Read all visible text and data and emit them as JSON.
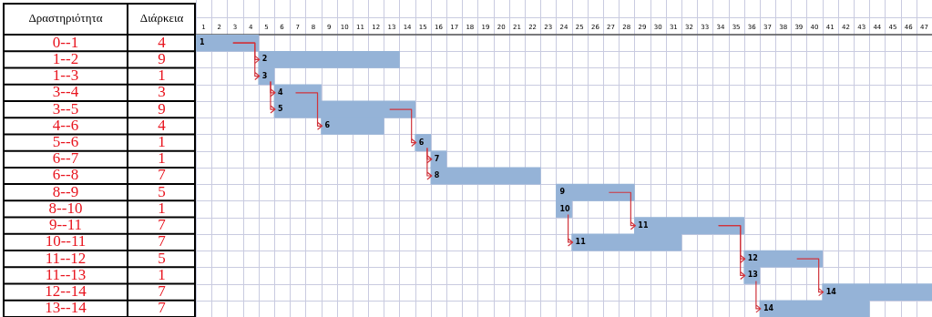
{
  "chart_data": {
    "type": "bar",
    "orientation": "horizontal",
    "ylabel": "Δραστηριότητα",
    "categories": [
      "0--1",
      "1--2",
      "1--3",
      "3--4",
      "3--5",
      "4--6",
      "5--6",
      "6--7",
      "6--8",
      "8--9",
      "8--10",
      "9--11",
      "10--11",
      "11--12",
      "11--13",
      "12--14",
      "13--14"
    ],
    "base": [
      0,
      4,
      4,
      5,
      5,
      8,
      14,
      15,
      15,
      23,
      23,
      28,
      24,
      35,
      35,
      40,
      36
    ],
    "values": [
      4,
      9,
      1,
      3,
      9,
      4,
      1,
      1,
      7,
      5,
      1,
      7,
      7,
      5,
      1,
      7,
      7
    ],
    "value_labels": [
      "4",
      "9",
      "1",
      "3",
      "9",
      "4",
      "1",
      "1",
      "7",
      "5",
      "1",
      "7",
      "7",
      "5",
      "1",
      "7",
      "7"
    ],
    "color": "#95b3d7",
    "xlim": [
      0,
      47
    ],
    "xticks": [
      {
        "value": 0.5,
        "label": "1"
      },
      {
        "value": 1.5,
        "label": "2"
      },
      {
        "value": 2.5,
        "label": "3"
      },
      {
        "value": 3.5,
        "label": "4"
      },
      {
        "value": 4.5,
        "label": "5"
      },
      {
        "value": 5.5,
        "label": "6"
      },
      {
        "value": 6.5,
        "label": "7"
      },
      {
        "value": 7.5,
        "label": "8"
      },
      {
        "value": 8.5,
        "label": "9"
      },
      {
        "value": 9.5,
        "label": "10"
      },
      {
        "value": 10.5,
        "label": "11"
      },
      {
        "value": 11.5,
        "label": "12"
      },
      {
        "value": 12.5,
        "label": "13"
      },
      {
        "value": 13.5,
        "label": "14"
      },
      {
        "value": 14.5,
        "label": "15"
      },
      {
        "value": 15.5,
        "label": "16"
      },
      {
        "value": 16.5,
        "label": "17"
      },
      {
        "value": 17.5,
        "label": "18"
      },
      {
        "value": 18.5,
        "label": "19"
      },
      {
        "value": 19.5,
        "label": "20"
      },
      {
        "value": 20.5,
        "label": "21"
      },
      {
        "value": 21.5,
        "label": "22"
      },
      {
        "value": 22.5,
        "label": "23"
      },
      {
        "value": 23.5,
        "label": "24"
      },
      {
        "value": 24.5,
        "label": "25"
      },
      {
        "value": 25.5,
        "label": "26"
      },
      {
        "value": 26.5,
        "label": "27"
      },
      {
        "value": 27.5,
        "label": "28"
      },
      {
        "value": 28.5,
        "label": "29"
      },
      {
        "value": 29.5,
        "label": "30"
      },
      {
        "value": 30.5,
        "label": "31"
      },
      {
        "value": 31.5,
        "label": "32"
      },
      {
        "value": 32.5,
        "label": "33"
      },
      {
        "value": 33.5,
        "label": "34"
      },
      {
        "value": 34.5,
        "label": "35"
      },
      {
        "value": 35.5,
        "label": "36"
      },
      {
        "value": 36.5,
        "label": "37"
      },
      {
        "value": 37.5,
        "label": "38"
      },
      {
        "value": 38.5,
        "label": "39"
      },
      {
        "value": 39.5,
        "label": "40"
      },
      {
        "value": 40.5,
        "label": "41"
      },
      {
        "value": 41.5,
        "label": "42"
      },
      {
        "value": 42.5,
        "label": "43"
      },
      {
        "value": 43.5,
        "label": "44"
      },
      {
        "value": 44.5,
        "label": "45"
      },
      {
        "value": 45.5,
        "label": "46"
      },
      {
        "value": 46.5,
        "label": "47"
      }
    ],
    "grid": true,
    "annotations": [
      "Διάρκεια",
      {
        "text": "1",
        "x": 0,
        "y": "0--1"
      },
      {
        "text": "2",
        "x": 4,
        "y": "1--2"
      },
      {
        "text": "3",
        "x": 4,
        "y": "1--3"
      },
      {
        "text": "4",
        "x": 5,
        "y": "3--4"
      },
      {
        "text": "5",
        "x": 5,
        "y": "3--5"
      },
      {
        "text": "6",
        "x": 8,
        "y": "4--6"
      },
      {
        "text": "6",
        "x": 14,
        "y": "5--6"
      },
      {
        "text": "7",
        "x": 15,
        "y": "6--7"
      },
      {
        "text": "8",
        "x": 15,
        "y": "6--8"
      },
      {
        "text": "9",
        "x": 23,
        "y": "8--9"
      },
      {
        "text": "10",
        "x": 23,
        "y": "8--10"
      },
      {
        "text": "11",
        "x": 28,
        "y": "9--11"
      },
      {
        "text": "11",
        "x": 24,
        "y": "10--11"
      },
      {
        "text": "12",
        "x": 35,
        "y": "11--12"
      },
      {
        "text": "13",
        "x": 35,
        "y": "11--13"
      },
      {
        "text": "14",
        "x": 40,
        "y": "12--14"
      },
      {
        "text": "14",
        "x": 36,
        "y": "13--14"
      }
    ]
  }
}
